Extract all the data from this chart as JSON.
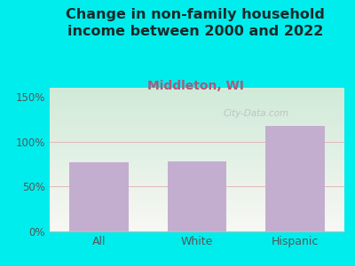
{
  "title": "Change in non-family household\nincome between 2000 and 2022",
  "subtitle": "Middleton, WI",
  "categories": [
    "All",
    "White",
    "Hispanic"
  ],
  "values": [
    77,
    78,
    118
  ],
  "bar_color": "#c4aed0",
  "outer_bg": "#00eded",
  "plot_bg_top_left": "#d0ead8",
  "plot_bg_bottom_right": "#f8f8f4",
  "title_color": "#1a2a2a",
  "subtitle_color": "#b05878",
  "axis_color": "#555555",
  "grid_color": "#e0b8b8",
  "yticks": [
    0,
    50,
    100,
    150
  ],
  "ytick_labels": [
    "0%",
    "50%",
    "100%",
    "150%"
  ],
  "ylim": [
    0,
    160
  ],
  "watermark": "City-Data.com",
  "title_fontsize": 11.5,
  "subtitle_fontsize": 10
}
